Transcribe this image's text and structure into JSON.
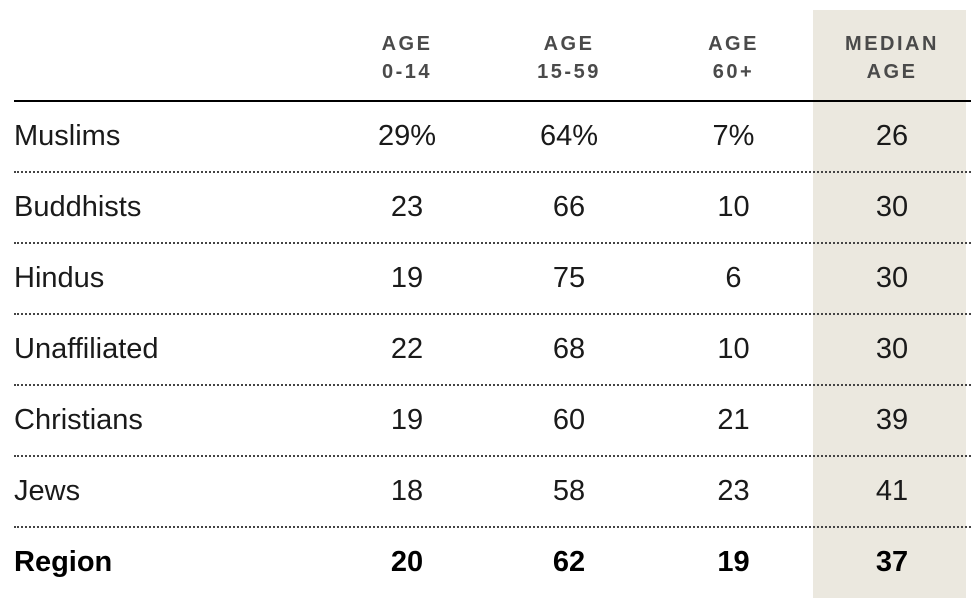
{
  "colors": {
    "highlight_column_bg": "#EBE8DF",
    "header_text": "#4A4A4A",
    "body_text": "#1A1A1A",
    "header_rule": "#000000",
    "row_divider_dots": "#444444"
  },
  "chart_data": {
    "type": "table",
    "columns": [
      "AGE 0-14",
      "AGE 15-59",
      "AGE 60+",
      "MEDIAN AGE"
    ],
    "columns_display": [
      "AGE\n0-14",
      "AGE\n15-59",
      "AGE\n60+",
      "MEDIAN\nAGE"
    ],
    "highlighted_column": "MEDIAN AGE",
    "rows": [
      {
        "label": "Muslims",
        "values": [
          "29%",
          "64%",
          "7%",
          "26"
        ]
      },
      {
        "label": "Buddhists",
        "values": [
          "23",
          "66",
          "10",
          "30"
        ]
      },
      {
        "label": "Hindus",
        "values": [
          "19",
          "75",
          "6",
          "30"
        ]
      },
      {
        "label": "Unaffiliated",
        "values": [
          "22",
          "68",
          "10",
          "30"
        ]
      },
      {
        "label": "Christians",
        "values": [
          "19",
          "60",
          "21",
          "39"
        ]
      },
      {
        "label": "Jews",
        "values": [
          "18",
          "58",
          "23",
          "41"
        ]
      },
      {
        "label": "Region",
        "values": [
          "20",
          "62",
          "19",
          "37"
        ],
        "emphasis": true
      }
    ]
  }
}
